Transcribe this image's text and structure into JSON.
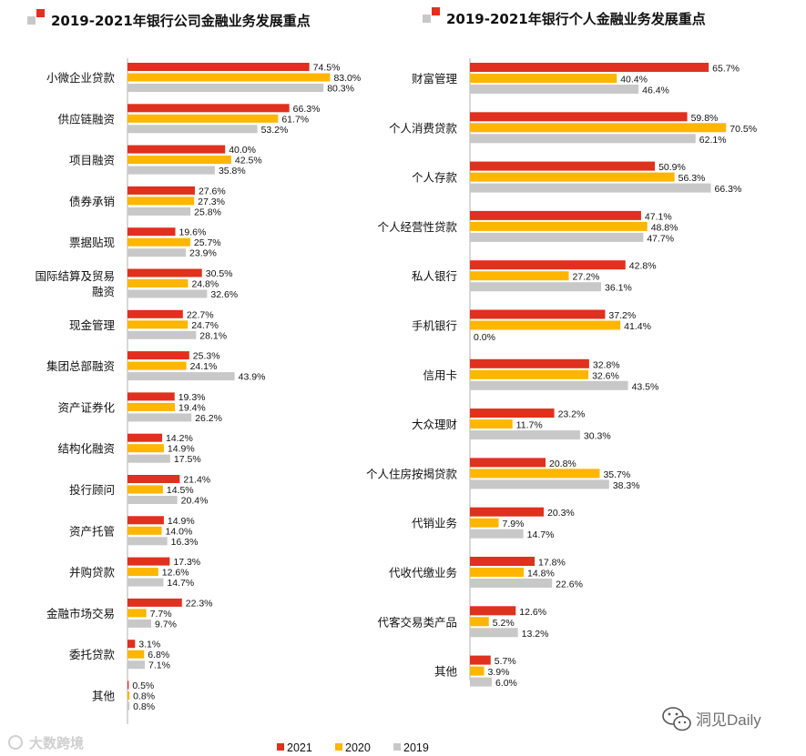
{
  "colors": {
    "2021": "#e0301e",
    "2020": "#ffb600",
    "2019": "#c8c8c8"
  },
  "legend": {
    "items": [
      {
        "key": "2021",
        "label": "2021"
      },
      {
        "key": "2020",
        "label": "2020"
      },
      {
        "key": "2019",
        "label": "2019"
      }
    ],
    "position": "bottom"
  },
  "watermarks": {
    "left": "大数跨境",
    "right": "洞见Daily"
  },
  "chart_data": [
    {
      "type": "bar",
      "orientation": "horizontal",
      "title": "2019-2021年银行公司金融业务发展重点",
      "series_keys": [
        "2021",
        "2020",
        "2019"
      ],
      "categories": [
        "小微企业贷款",
        "供应链融资",
        "项目融资",
        "债券承销",
        "票据贴现",
        "国际结算及贸易融资",
        "现金管理",
        "集团总部融资",
        "资产证券化",
        "结构化融资",
        "投行顾问",
        "资产托管",
        "并购贷款",
        "金融市场交易",
        "委托贷款",
        "其他"
      ],
      "category_lines": [
        [
          "小微企业贷款"
        ],
        [
          "供应链融资"
        ],
        [
          "项目融资"
        ],
        [
          "债券承销"
        ],
        [
          "票据贴现"
        ],
        [
          "国际结算及贸易",
          "融资"
        ],
        [
          "现金管理"
        ],
        [
          "集团总部融资"
        ],
        [
          "资产证券化"
        ],
        [
          "结构化融资"
        ],
        [
          "投行顾问"
        ],
        [
          "资产托管"
        ],
        [
          "并购贷款"
        ],
        [
          "金融市场交易"
        ],
        [
          "委托贷款"
        ],
        [
          "其他"
        ]
      ],
      "series": [
        {
          "name": "2021",
          "values": [
            74.5,
            66.3,
            40.0,
            27.6,
            19.6,
            30.5,
            22.7,
            25.3,
            19.3,
            14.2,
            21.4,
            14.9,
            17.3,
            22.3,
            3.1,
            0.5
          ]
        },
        {
          "name": "2020",
          "values": [
            83.0,
            61.7,
            42.5,
            27.3,
            25.7,
            24.8,
            24.7,
            24.1,
            19.4,
            14.9,
            14.5,
            14.0,
            12.6,
            7.7,
            6.8,
            0.8
          ]
        },
        {
          "name": "2019",
          "values": [
            80.3,
            53.2,
            35.8,
            25.8,
            23.9,
            32.6,
            28.1,
            43.9,
            26.2,
            17.5,
            20.4,
            16.3,
            14.7,
            9.7,
            7.1,
            0.8
          ]
        }
      ],
      "value_suffix": "%"
    },
    {
      "type": "bar",
      "orientation": "horizontal",
      "title": "2019-2021年银行个人金融业务发展重点",
      "series_keys": [
        "2021",
        "2020",
        "2019"
      ],
      "categories": [
        "财富管理",
        "个人消费贷款",
        "个人存款",
        "个人经营性贷款",
        "私人银行",
        "手机银行",
        "信用卡",
        "大众理财",
        "个人住房按揭贷款",
        "代销业务",
        "代收代缴业务",
        "代客交易类产品",
        "其他"
      ],
      "category_lines": [
        [
          "财富管理"
        ],
        [
          "个人消费贷款"
        ],
        [
          "个人存款"
        ],
        [
          "个人经营性贷款"
        ],
        [
          "私人银行"
        ],
        [
          "手机银行"
        ],
        [
          "信用卡"
        ],
        [
          "大众理财"
        ],
        [
          "个人住房按揭贷款"
        ],
        [
          "代销业务"
        ],
        [
          "代收代缴业务"
        ],
        [
          "代客交易类产品"
        ],
        [
          "其他"
        ]
      ],
      "series": [
        {
          "name": "2021",
          "values": [
            65.7,
            59.8,
            50.9,
            47.1,
            42.8,
            37.2,
            32.8,
            23.2,
            20.8,
            20.3,
            17.8,
            12.6,
            5.7
          ]
        },
        {
          "name": "2020",
          "values": [
            40.4,
            70.5,
            56.3,
            48.8,
            27.2,
            41.4,
            32.6,
            11.7,
            35.7,
            7.9,
            14.8,
            5.2,
            3.9
          ]
        },
        {
          "name": "2019",
          "values": [
            46.4,
            62.1,
            66.3,
            47.7,
            36.1,
            0.0,
            43.5,
            30.3,
            38.3,
            14.7,
            22.6,
            13.2,
            6.0
          ]
        }
      ],
      "value_suffix": "%"
    }
  ]
}
